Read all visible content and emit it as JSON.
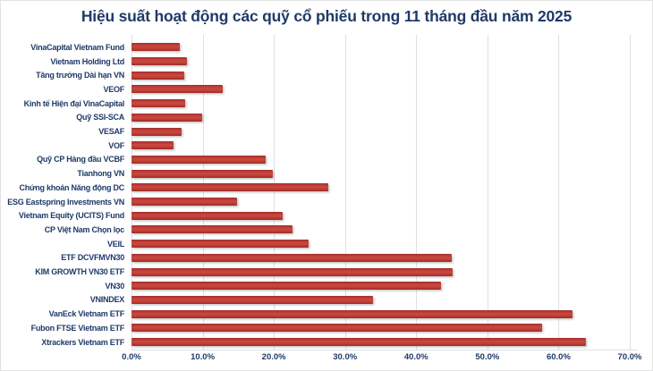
{
  "title": "Hiệu suất hoạt động các quỹ cổ phiếu trong 11 tháng đầu năm 2025",
  "chart_data": {
    "type": "bar",
    "orientation": "horizontal",
    "title": "Hiệu suất hoạt động các quỹ cổ phiếu trong 11 tháng đầu năm 2025",
    "xlabel": "",
    "ylabel": "",
    "xlim": [
      0,
      70
    ],
    "grid": true,
    "legend": false,
    "value_unit": "%",
    "categories": [
      "VinaCapital Vietnam Fund",
      "Vietnam Holding Ltd",
      "Tăng trưởng Dài hạn VN",
      "VEOF",
      "Kinh tế Hiện đại VinaCapital",
      "Quỹ SSI-SCA",
      "VESAF",
      "VOF",
      "Quỹ CP Hàng đầu VCBF",
      "Tianhong VN",
      "Chứng khoán Năng động DC",
      "ESG Eastspring Investments VN",
      "Vietnam Equity (UCITS) Fund",
      "CP Việt Nam Chọn lọc",
      "VEIL",
      "ETF DCVFMVN30",
      "KIM GROWTH VN30 ETF",
      "VN30",
      "VNINDEX",
      "VanEck Vietnam ETF",
      "Fubon FTSE Vietnam ETF",
      "Xtrackers Vietnam ETF"
    ],
    "values": [
      6.8,
      7.8,
      7.4,
      12.8,
      7.5,
      9.9,
      7.0,
      5.9,
      18.9,
      19.8,
      27.7,
      14.8,
      21.2,
      22.6,
      24.9,
      45.0,
      45.1,
      43.5,
      33.9,
      62.0,
      57.7,
      63.9
    ],
    "x_ticks": [
      {
        "label": "0.0%",
        "value": 0
      },
      {
        "label": "10.0%",
        "value": 10
      },
      {
        "label": "20.0%",
        "value": 20
      },
      {
        "label": "30.0%",
        "value": 30
      },
      {
        "label": "40.0%",
        "value": 40
      },
      {
        "label": "50.0%",
        "value": 50
      },
      {
        "label": "60.0%",
        "value": 60
      },
      {
        "label": "70.0%",
        "value": 70
      }
    ],
    "colors": {
      "bar": "#c0392f",
      "text": "#1f3a68",
      "gridline": "#dbe1e8",
      "background": "#ffffff"
    }
  }
}
